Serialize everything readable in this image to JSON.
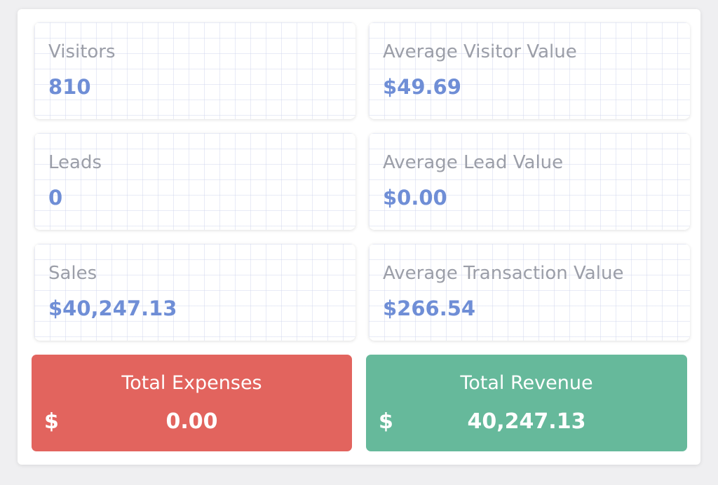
{
  "metrics": [
    {
      "label": "Visitors",
      "value": "810"
    },
    {
      "label": "Average Visitor Value",
      "value": "$49.69"
    },
    {
      "label": "Leads",
      "value": "0"
    },
    {
      "label": "Average Lead Value",
      "value": "$0.00"
    },
    {
      "label": "Sales",
      "value": "$40,247.13"
    },
    {
      "label": "Average Transaction Value",
      "value": "$266.54"
    }
  ],
  "totals": {
    "expenses": {
      "label": "Total Expenses",
      "currency": "$",
      "value": "0.00",
      "color": "#e2645e"
    },
    "revenue": {
      "label": "Total Revenue",
      "currency": "$",
      "value": "40,247.13",
      "color": "#66b99b"
    }
  },
  "colors": {
    "value_text": "#6f8ed6",
    "label_text": "#9b9ea8"
  }
}
